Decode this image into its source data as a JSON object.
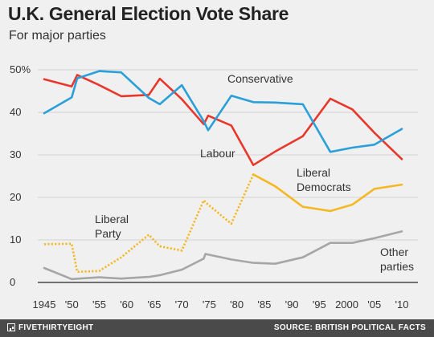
{
  "chart_data": {
    "type": "line",
    "title": "U.K. General Election Vote Share",
    "subtitle": "For major parties",
    "ylim": [
      0,
      50
    ],
    "yticks": [
      0,
      10,
      20,
      30,
      40,
      50
    ],
    "ytick_labels": [
      "0",
      "10",
      "20",
      "30",
      "40",
      "50%"
    ],
    "xlim": [
      1945,
      2010
    ],
    "xticks": [
      1945,
      1950,
      1955,
      1960,
      1965,
      1970,
      1975,
      1980,
      1985,
      1990,
      1995,
      2000,
      2005,
      2010
    ],
    "xtick_labels": [
      "1945",
      "'50",
      "'55",
      "'60",
      "'65",
      "'70",
      "'75",
      "'80",
      "'85",
      "'90",
      "'95",
      "2000",
      "'05",
      "'10"
    ],
    "grid": true,
    "series": [
      {
        "name": "Conservative",
        "color": "#2b9fd8",
        "style": "solid",
        "points": [
          [
            1945,
            39.8
          ],
          [
            1950,
            43.5
          ],
          [
            1951,
            48.0
          ],
          [
            1955,
            49.7
          ],
          [
            1959,
            49.4
          ],
          [
            1964,
            43.4
          ],
          [
            1966,
            41.9
          ],
          [
            1970,
            46.4
          ],
          [
            1974,
            37.9
          ],
          [
            1974.8,
            35.8
          ],
          [
            1979,
            43.9
          ],
          [
            1983,
            42.4
          ],
          [
            1987,
            42.3
          ],
          [
            1992,
            41.9
          ],
          [
            1997,
            30.7
          ],
          [
            2001,
            31.7
          ],
          [
            2005,
            32.4
          ],
          [
            2010,
            36.1
          ]
        ],
        "label": [
          "Conservative"
        ]
      },
      {
        "name": "Labour",
        "color": "#e8372c",
        "style": "solid",
        "points": [
          [
            1945,
            47.8
          ],
          [
            1950,
            46.1
          ],
          [
            1951,
            48.8
          ],
          [
            1955,
            46.4
          ],
          [
            1959,
            43.8
          ],
          [
            1964,
            44.1
          ],
          [
            1966,
            47.9
          ],
          [
            1970,
            43.1
          ],
          [
            1974,
            37.2
          ],
          [
            1974.8,
            39.2
          ],
          [
            1979,
            36.9
          ],
          [
            1983,
            27.6
          ],
          [
            1987,
            30.8
          ],
          [
            1992,
            34.4
          ],
          [
            1997,
            43.2
          ],
          [
            2001,
            40.7
          ],
          [
            2005,
            35.2
          ],
          [
            2010,
            29.0
          ]
        ],
        "label": [
          "Labour"
        ]
      },
      {
        "name": "Liberal Party",
        "color": "#f4b824",
        "style": "dotted",
        "points": [
          [
            1945,
            9.0
          ],
          [
            1950,
            9.1
          ],
          [
            1951,
            2.5
          ],
          [
            1955,
            2.7
          ],
          [
            1959,
            5.9
          ],
          [
            1964,
            11.2
          ],
          [
            1966,
            8.5
          ],
          [
            1970,
            7.5
          ],
          [
            1974,
            19.3
          ],
          [
            1974.8,
            18.3
          ],
          [
            1979,
            13.8
          ],
          [
            1983,
            25.4
          ]
        ],
        "label": [
          "Liberal",
          "Party"
        ]
      },
      {
        "name": "Liberal Democrats",
        "color": "#f4b824",
        "style": "solid",
        "points": [
          [
            1983,
            25.4
          ],
          [
            1987,
            22.6
          ],
          [
            1992,
            17.8
          ],
          [
            1997,
            16.8
          ],
          [
            2001,
            18.3
          ],
          [
            2005,
            22.0
          ],
          [
            2010,
            23.0
          ]
        ],
        "label": [
          "Liberal",
          "Democrats"
        ]
      },
      {
        "name": "Other parties",
        "color": "#a6a6a6",
        "style": "solid",
        "points": [
          [
            1945,
            3.4
          ],
          [
            1950,
            0.8
          ],
          [
            1955,
            1.2
          ],
          [
            1959,
            0.9
          ],
          [
            1964,
            1.3
          ],
          [
            1966,
            1.7
          ],
          [
            1970,
            3.0
          ],
          [
            1974,
            5.6
          ],
          [
            1974.3,
            6.7
          ],
          [
            1979,
            5.4
          ],
          [
            1983,
            4.6
          ],
          [
            1987,
            4.4
          ],
          [
            1992,
            5.9
          ],
          [
            1997,
            9.3
          ],
          [
            2001,
            9.3
          ],
          [
            2005,
            10.4
          ],
          [
            2010,
            12.0
          ]
        ],
        "label": [
          "Other",
          "parties"
        ]
      }
    ]
  },
  "footer": {
    "brand": "FIVETHIRTYEIGHT",
    "source": "SOURCE: BRITISH POLITICAL FACTS"
  }
}
